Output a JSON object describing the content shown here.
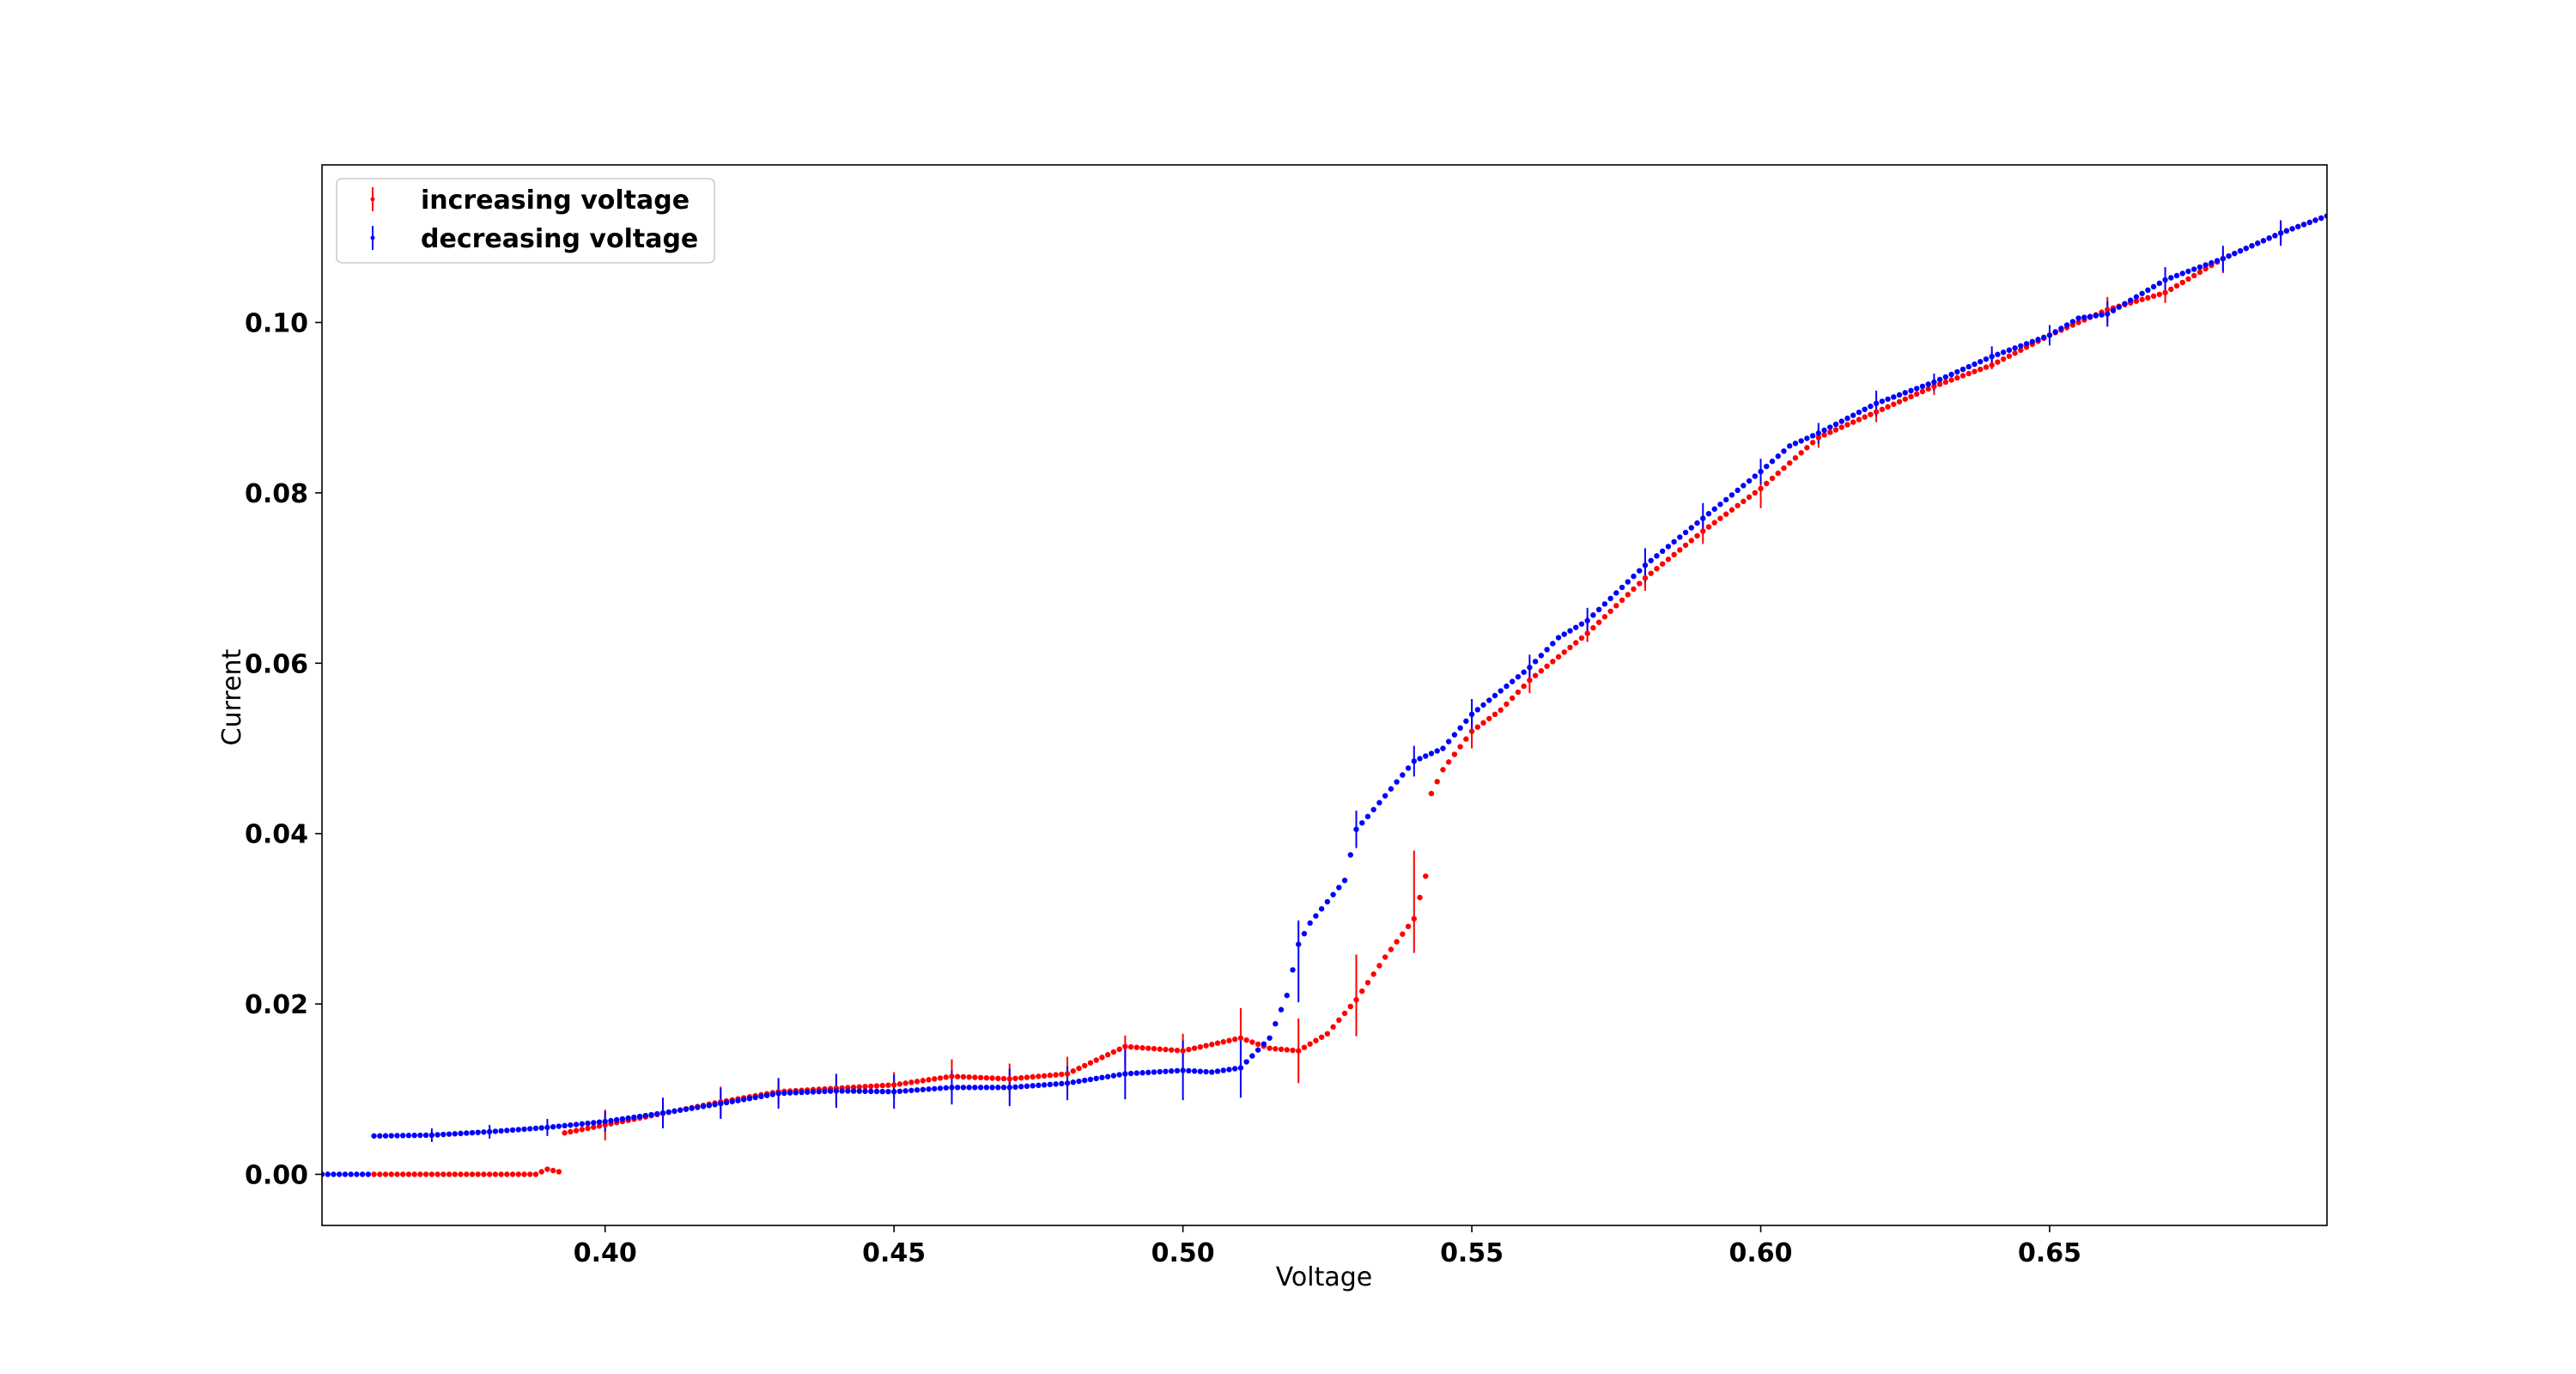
{
  "chart_data": {
    "type": "scatter",
    "xlabel": "Voltage",
    "ylabel": "Current",
    "xlim": [
      0.351,
      0.698
    ],
    "ylim": [
      -0.006,
      0.1185
    ],
    "x_ticks": [
      0.4,
      0.45,
      0.5,
      0.55,
      0.6,
      0.65
    ],
    "x_tick_labels": [
      "0.40",
      "0.45",
      "0.50",
      "0.55",
      "0.60",
      "0.65"
    ],
    "y_ticks": [
      0.0,
      0.02,
      0.04,
      0.06,
      0.08,
      0.1
    ],
    "y_tick_labels": [
      "0.00",
      "0.02",
      "0.04",
      "0.06",
      "0.08",
      "0.10"
    ],
    "grid": false,
    "legend_position": "top-left",
    "point_spacing": 0.001,
    "series": [
      {
        "name": "increasing voltage",
        "color": "#ff0000",
        "x_start": 0.36,
        "x_end": 0.698,
        "curve": [
          [
            0.36,
            0.0
          ],
          [
            0.388,
            0.0
          ],
          [
            0.39,
            0.0006
          ],
          [
            0.392,
            0.0003
          ],
          [
            0.3925,
            0.0048
          ],
          [
            0.4,
            0.0058
          ],
          [
            0.42,
            0.0085
          ],
          [
            0.43,
            0.0097
          ],
          [
            0.45,
            0.0105
          ],
          [
            0.46,
            0.0115
          ],
          [
            0.47,
            0.0112
          ],
          [
            0.48,
            0.0118
          ],
          [
            0.49,
            0.015
          ],
          [
            0.5,
            0.0145
          ],
          [
            0.51,
            0.016
          ],
          [
            0.515,
            0.0148
          ],
          [
            0.52,
            0.0145
          ],
          [
            0.525,
            0.0165
          ],
          [
            0.53,
            0.0205
          ],
          [
            0.535,
            0.0255
          ],
          [
            0.54,
            0.03
          ],
          [
            0.542,
            0.035
          ],
          [
            0.5425,
            0.044
          ],
          [
            0.545,
            0.0475
          ],
          [
            0.55,
            0.052
          ],
          [
            0.555,
            0.0545
          ],
          [
            0.56,
            0.058
          ],
          [
            0.57,
            0.0635
          ],
          [
            0.58,
            0.07
          ],
          [
            0.59,
            0.0755
          ],
          [
            0.6,
            0.0805
          ],
          [
            0.61,
            0.0865
          ],
          [
            0.62,
            0.0895
          ],
          [
            0.63,
            0.0925
          ],
          [
            0.64,
            0.095
          ],
          [
            0.65,
            0.0985
          ],
          [
            0.66,
            0.1015
          ],
          [
            0.67,
            0.1035
          ],
          [
            0.68,
            0.1075
          ],
          [
            0.69,
            0.1105
          ],
          [
            0.698,
            0.1125
          ]
        ],
        "error_bars": [
          [
            0.4,
            0.0058,
            0.0018
          ],
          [
            0.41,
            0.007,
            0.0015
          ],
          [
            0.42,
            0.0085,
            0.0018
          ],
          [
            0.43,
            0.0097,
            0.0015
          ],
          [
            0.44,
            0.01,
            0.0015
          ],
          [
            0.45,
            0.0105,
            0.0015
          ],
          [
            0.46,
            0.0115,
            0.002
          ],
          [
            0.47,
            0.0112,
            0.0018
          ],
          [
            0.48,
            0.0118,
            0.002
          ],
          [
            0.49,
            0.0145,
            0.0018
          ],
          [
            0.5,
            0.0145,
            0.002
          ],
          [
            0.51,
            0.016,
            0.0035
          ],
          [
            0.52,
            0.0145,
            0.0038
          ],
          [
            0.53,
            0.021,
            0.0048
          ],
          [
            0.54,
            0.032,
            0.006
          ],
          [
            0.55,
            0.052,
            0.002
          ],
          [
            0.56,
            0.058,
            0.0015
          ],
          [
            0.57,
            0.064,
            0.0015
          ],
          [
            0.58,
            0.07,
            0.0015
          ],
          [
            0.59,
            0.0755,
            0.0015
          ],
          [
            0.6,
            0.08,
            0.0018
          ],
          [
            0.61,
            0.0865,
            0.0012
          ],
          [
            0.62,
            0.0895,
            0.0012
          ],
          [
            0.63,
            0.0925,
            0.001
          ],
          [
            0.64,
            0.0955,
            0.001
          ],
          [
            0.65,
            0.0985,
            0.001
          ],
          [
            0.66,
            0.1015,
            0.0015
          ],
          [
            0.67,
            0.1035,
            0.0012
          ],
          [
            0.68,
            0.107,
            0.0012
          ],
          [
            0.69,
            0.1105,
            0.0012
          ]
        ]
      },
      {
        "name": "decreasing voltage",
        "color": "#0000ff",
        "x_start": 0.351,
        "x_end": 0.698,
        "curve": [
          [
            0.351,
            0.0
          ],
          [
            0.359,
            0.0
          ],
          [
            0.3595,
            0.0045
          ],
          [
            0.37,
            0.0046
          ],
          [
            0.38,
            0.005
          ],
          [
            0.39,
            0.0055
          ],
          [
            0.4,
            0.0062
          ],
          [
            0.41,
            0.0072
          ],
          [
            0.42,
            0.0083
          ],
          [
            0.43,
            0.0095
          ],
          [
            0.44,
            0.0098
          ],
          [
            0.45,
            0.0097
          ],
          [
            0.46,
            0.0102
          ],
          [
            0.47,
            0.0102
          ],
          [
            0.48,
            0.0107
          ],
          [
            0.49,
            0.0118
          ],
          [
            0.5,
            0.0122
          ],
          [
            0.505,
            0.012
          ],
          [
            0.51,
            0.0125
          ],
          [
            0.515,
            0.016
          ],
          [
            0.518,
            0.021
          ],
          [
            0.52,
            0.027
          ],
          [
            0.522,
            0.0295
          ],
          [
            0.528,
            0.0345
          ],
          [
            0.529,
            0.0375
          ],
          [
            0.53,
            0.0405
          ],
          [
            0.532,
            0.042
          ],
          [
            0.54,
            0.0485
          ],
          [
            0.545,
            0.05
          ],
          [
            0.55,
            0.054
          ],
          [
            0.56,
            0.0595
          ],
          [
            0.565,
            0.063
          ],
          [
            0.57,
            0.065
          ],
          [
            0.58,
            0.0715
          ],
          [
            0.59,
            0.077
          ],
          [
            0.6,
            0.0825
          ],
          [
            0.605,
            0.0855
          ],
          [
            0.61,
            0.087
          ],
          [
            0.62,
            0.0905
          ],
          [
            0.63,
            0.093
          ],
          [
            0.64,
            0.096
          ],
          [
            0.65,
            0.0985
          ],
          [
            0.655,
            0.1005
          ],
          [
            0.66,
            0.101
          ],
          [
            0.67,
            0.105
          ],
          [
            0.68,
            0.1075
          ],
          [
            0.69,
            0.1105
          ],
          [
            0.698,
            0.1125
          ]
        ],
        "error_bars": [
          [
            0.37,
            0.0046,
            0.0008
          ],
          [
            0.38,
            0.005,
            0.0008
          ],
          [
            0.39,
            0.0055,
            0.001
          ],
          [
            0.4,
            0.0062,
            0.0012
          ],
          [
            0.41,
            0.0072,
            0.0018
          ],
          [
            0.42,
            0.0083,
            0.0018
          ],
          [
            0.43,
            0.0095,
            0.0018
          ],
          [
            0.44,
            0.0098,
            0.002
          ],
          [
            0.45,
            0.0097,
            0.002
          ],
          [
            0.46,
            0.0102,
            0.002
          ],
          [
            0.47,
            0.0102,
            0.0022
          ],
          [
            0.48,
            0.0107,
            0.002
          ],
          [
            0.49,
            0.0118,
            0.003
          ],
          [
            0.5,
            0.0122,
            0.0035
          ],
          [
            0.51,
            0.0125,
            0.0035
          ],
          [
            0.52,
            0.025,
            0.0048
          ],
          [
            0.53,
            0.0405,
            0.0022
          ],
          [
            0.54,
            0.0485,
            0.0018
          ],
          [
            0.55,
            0.054,
            0.0018
          ],
          [
            0.56,
            0.0595,
            0.0015
          ],
          [
            0.57,
            0.065,
            0.0015
          ],
          [
            0.58,
            0.0715,
            0.002
          ],
          [
            0.59,
            0.077,
            0.0018
          ],
          [
            0.6,
            0.0825,
            0.0015
          ],
          [
            0.61,
            0.087,
            0.0012
          ],
          [
            0.62,
            0.0905,
            0.0015
          ],
          [
            0.63,
            0.093,
            0.001
          ],
          [
            0.64,
            0.096,
            0.0012
          ],
          [
            0.65,
            0.0985,
            0.0012
          ],
          [
            0.66,
            0.101,
            0.0015
          ],
          [
            0.67,
            0.105,
            0.0015
          ],
          [
            0.68,
            0.1075,
            0.0015
          ],
          [
            0.69,
            0.1105,
            0.0015
          ]
        ]
      }
    ]
  }
}
